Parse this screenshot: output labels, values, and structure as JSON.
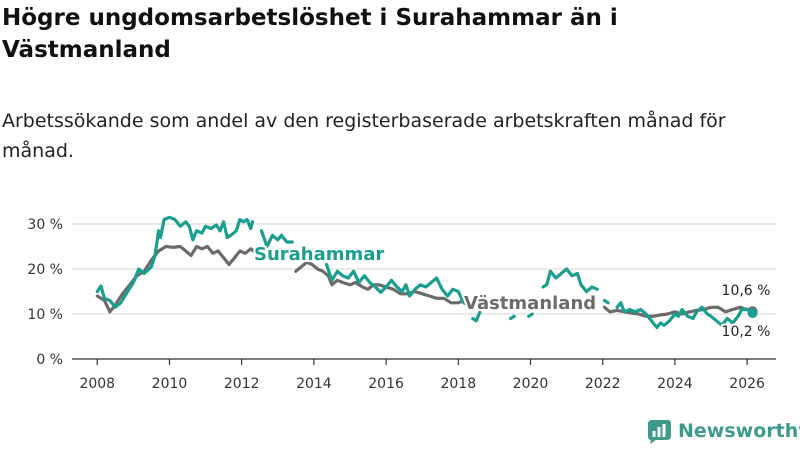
{
  "title": "Högre ungdomsarbetslöshet i Surahammar än i Västmanland",
  "subtitle": "Arbetssökande som andel av den registerbaserade arbetskraften månad för månad.",
  "brand": {
    "name": "Newsworthy"
  },
  "colors": {
    "surahammar": "#1a9e8f",
    "vastmanland": "#6b6b6b",
    "grid": "#d6d6d6"
  },
  "chart_data": {
    "type": "line",
    "xlim": [
      2007.3,
      2026.8
    ],
    "ylim": [
      0,
      30
    ],
    "x_ticks": [
      2008,
      2010,
      2012,
      2014,
      2016,
      2018,
      2020,
      2022,
      2024,
      2026
    ],
    "x_tick_labels": [
      "2008",
      "2010",
      "2012",
      "2014",
      "2016",
      "2018",
      "2020",
      "2022",
      "2024",
      "2026"
    ],
    "y_ticks": [
      0,
      10,
      20,
      30
    ],
    "y_tick_labels": [
      "0 %",
      "10 %",
      "20 %",
      "30 %"
    ],
    "annotations": {
      "end_upper": "10,6 %",
      "end_lower": "10,2 %"
    },
    "series": [
      {
        "name": "Surahammar",
        "label": "Surahammar",
        "points": [
          [
            2008.0,
            15.0
          ],
          [
            2008.1,
            16.2
          ],
          [
            2008.2,
            13.5
          ],
          [
            2008.35,
            13.0
          ],
          [
            2008.5,
            11.5
          ],
          [
            2008.65,
            12.5
          ],
          [
            2008.8,
            14.5
          ],
          [
            2009.0,
            17.0
          ],
          [
            2009.15,
            20.0
          ],
          [
            2009.3,
            19.0
          ],
          [
            2009.5,
            20.5
          ],
          [
            2009.6,
            23.0
          ],
          [
            2009.7,
            28.5
          ],
          [
            2009.75,
            27.0
          ],
          [
            2009.85,
            31.0
          ],
          [
            2010.0,
            31.5
          ],
          [
            2010.15,
            31.0
          ],
          [
            2010.3,
            29.5
          ],
          [
            2010.45,
            30.5
          ],
          [
            2010.55,
            29.5
          ],
          [
            2010.65,
            26.5
          ],
          [
            2010.75,
            28.5
          ],
          [
            2010.9,
            28.0
          ],
          [
            2011.0,
            29.5
          ],
          [
            2011.15,
            29.0
          ],
          [
            2011.3,
            29.8
          ],
          [
            2011.4,
            28.5
          ],
          [
            2011.5,
            30.5
          ],
          [
            2011.6,
            27.0
          ],
          [
            2011.7,
            27.5
          ],
          [
            2011.85,
            28.5
          ],
          [
            2011.95,
            31.0
          ],
          [
            2012.05,
            30.5
          ],
          [
            2012.15,
            31.0
          ],
          [
            2012.25,
            29.0
          ],
          [
            2012.3,
            30.5
          ],
          null,
          [
            2012.55,
            28.5
          ],
          [
            2012.7,
            25.0
          ],
          [
            2012.85,
            27.5
          ],
          [
            2013.0,
            26.5
          ],
          [
            2013.1,
            27.5
          ],
          [
            2013.25,
            26.0
          ],
          [
            2013.4,
            26.0
          ],
          null,
          [
            2014.35,
            21.0
          ],
          [
            2014.5,
            17.5
          ],
          [
            2014.65,
            19.5
          ],
          [
            2014.8,
            18.5
          ],
          [
            2014.95,
            18.0
          ],
          [
            2015.1,
            19.5
          ],
          [
            2015.25,
            17.0
          ],
          [
            2015.4,
            18.5
          ],
          [
            2015.55,
            17.0
          ],
          [
            2015.7,
            16.0
          ],
          [
            2015.85,
            14.8
          ],
          [
            2016.0,
            16.0
          ],
          [
            2016.15,
            17.5
          ],
          [
            2016.3,
            16.0
          ],
          [
            2016.45,
            15.0
          ],
          [
            2016.55,
            16.5
          ],
          [
            2016.65,
            14.0
          ],
          [
            2016.8,
            15.5
          ],
          [
            2016.95,
            16.5
          ],
          [
            2017.1,
            16.0
          ],
          [
            2017.25,
            17.0
          ],
          [
            2017.4,
            18.0
          ],
          [
            2017.55,
            15.5
          ],
          [
            2017.7,
            14.0
          ],
          [
            2017.85,
            15.5
          ],
          [
            2018.0,
            15.0
          ],
          [
            2018.15,
            12.5
          ],
          [
            2018.3,
            12.0
          ],
          null,
          [
            2018.4,
            9.0
          ],
          [
            2018.5,
            8.5
          ],
          [
            2018.6,
            10.5
          ],
          null,
          [
            2019.45,
            9.0
          ],
          [
            2019.55,
            9.5
          ],
          null,
          [
            2019.95,
            9.5
          ],
          [
            2020.05,
            10.0
          ],
          null,
          [
            2020.35,
            16.0
          ],
          [
            2020.45,
            16.5
          ],
          [
            2020.55,
            19.5
          ],
          [
            2020.7,
            18.0
          ],
          [
            2020.85,
            19.0
          ],
          [
            2021.0,
            20.0
          ],
          [
            2021.15,
            18.5
          ],
          [
            2021.3,
            19.0
          ],
          [
            2021.4,
            16.5
          ],
          [
            2021.55,
            15.0
          ],
          [
            2021.7,
            16.0
          ],
          [
            2021.85,
            15.5
          ],
          null,
          [
            2022.05,
            13.0
          ],
          [
            2022.15,
            12.5
          ],
          null,
          [
            2022.4,
            11.5
          ],
          [
            2022.5,
            12.5
          ],
          [
            2022.6,
            10.5
          ],
          [
            2022.75,
            11.0
          ],
          [
            2022.9,
            10.5
          ],
          [
            2023.05,
            11.0
          ],
          [
            2023.2,
            10.0
          ],
          [
            2023.35,
            8.5
          ],
          [
            2023.5,
            7.0
          ],
          [
            2023.6,
            8.0
          ],
          [
            2023.7,
            7.5
          ],
          [
            2023.85,
            8.5
          ],
          [
            2024.0,
            10.0
          ],
          [
            2024.1,
            9.5
          ],
          [
            2024.2,
            11.0
          ],
          [
            2024.35,
            9.5
          ],
          [
            2024.5,
            9.0
          ],
          [
            2024.6,
            10.5
          ],
          [
            2024.75,
            11.5
          ],
          [
            2024.9,
            10.0
          ],
          [
            2025.0,
            9.5
          ],
          [
            2025.15,
            8.5
          ],
          [
            2025.3,
            7.5
          ],
          [
            2025.45,
            9.0
          ],
          [
            2025.6,
            8.0
          ],
          [
            2025.75,
            9.5
          ],
          [
            2025.85,
            11.0
          ],
          [
            2026.0,
            11.0
          ],
          [
            2026.15,
            10.2
          ]
        ]
      },
      {
        "name": "Västmanland",
        "label": "Västmanland",
        "points": [
          [
            2008.0,
            14.0
          ],
          [
            2008.2,
            13.0
          ],
          [
            2008.35,
            10.5
          ],
          [
            2008.5,
            12.0
          ],
          [
            2008.7,
            14.5
          ],
          [
            2008.9,
            16.5
          ],
          [
            2009.1,
            18.5
          ],
          [
            2009.3,
            19.5
          ],
          [
            2009.5,
            22.0
          ],
          [
            2009.7,
            24.0
          ],
          [
            2009.9,
            25.0
          ],
          [
            2010.1,
            24.8
          ],
          [
            2010.3,
            25.0
          ],
          [
            2010.45,
            24.0
          ],
          [
            2010.6,
            23.0
          ],
          [
            2010.75,
            25.0
          ],
          [
            2010.9,
            24.5
          ],
          [
            2011.05,
            25.0
          ],
          [
            2011.2,
            23.5
          ],
          [
            2011.35,
            24.0
          ],
          [
            2011.5,
            22.5
          ],
          [
            2011.65,
            21.0
          ],
          [
            2011.8,
            22.5
          ],
          [
            2011.95,
            24.0
          ],
          [
            2012.1,
            23.5
          ],
          [
            2012.25,
            24.5
          ],
          [
            2012.4,
            23.5
          ],
          [
            2012.5,
            24.5
          ],
          null,
          [
            2013.5,
            19.5
          ],
          [
            2013.65,
            20.5
          ],
          [
            2013.8,
            21.5
          ],
          [
            2013.95,
            21.0
          ],
          [
            2014.1,
            20.0
          ],
          [
            2014.25,
            19.5
          ],
          [
            2014.4,
            18.5
          ],
          [
            2014.5,
            16.5
          ],
          [
            2014.65,
            17.5
          ],
          [
            2014.8,
            17.0
          ],
          [
            2015.0,
            16.5
          ],
          [
            2015.15,
            17.0
          ],
          [
            2015.35,
            16.0
          ],
          [
            2015.5,
            15.5
          ],
          [
            2015.65,
            16.5
          ],
          [
            2015.8,
            16.5
          ],
          [
            2016.0,
            16.0
          ],
          [
            2016.2,
            15.5
          ],
          [
            2016.4,
            14.5
          ],
          [
            2016.6,
            14.5
          ],
          [
            2016.8,
            15.0
          ],
          [
            2017.0,
            14.5
          ],
          [
            2017.2,
            14.0
          ],
          [
            2017.4,
            13.5
          ],
          [
            2017.6,
            13.5
          ],
          [
            2017.8,
            12.5
          ],
          [
            2018.0,
            12.5
          ],
          [
            2018.15,
            13.0
          ],
          null,
          [
            2022.05,
            11.5
          ],
          [
            2022.2,
            10.5
          ],
          [
            2022.4,
            10.8
          ],
          [
            2022.6,
            10.5
          ],
          [
            2022.8,
            10.2
          ],
          [
            2023.0,
            10.0
          ],
          [
            2023.2,
            9.5
          ],
          [
            2023.4,
            9.5
          ],
          [
            2023.6,
            9.8
          ],
          [
            2023.8,
            10.0
          ],
          [
            2024.0,
            10.5
          ],
          [
            2024.2,
            10.0
          ],
          [
            2024.4,
            10.5
          ],
          [
            2024.6,
            10.8
          ],
          [
            2024.8,
            11.0
          ],
          [
            2025.0,
            11.5
          ],
          [
            2025.2,
            11.5
          ],
          [
            2025.4,
            10.5
          ],
          [
            2025.6,
            11.0
          ],
          [
            2025.8,
            11.5
          ],
          [
            2026.0,
            11.0
          ],
          [
            2026.15,
            10.6
          ]
        ]
      }
    ]
  }
}
